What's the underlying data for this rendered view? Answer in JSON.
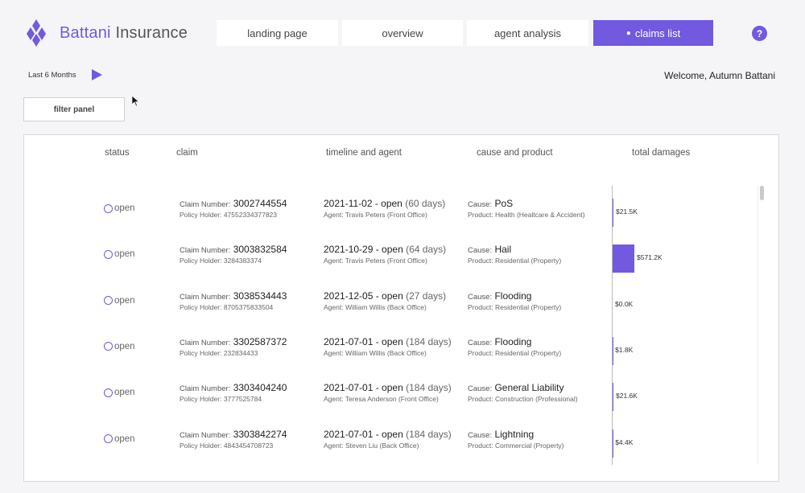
{
  "header": {
    "brand_primary": "Battani",
    "brand_secondary": "Insurance",
    "nav_tabs": [
      {
        "label": "landing page",
        "active": false
      },
      {
        "label": "overview",
        "active": false
      },
      {
        "label": "agent analysis",
        "active": false
      },
      {
        "label": "claims list",
        "active": true
      }
    ],
    "active_dot": "●",
    "help_label": "?"
  },
  "toolbar": {
    "period_label": "Last 6 Months",
    "welcome_text": "Welcome, Autumn Battani",
    "filter_button_label": "filter panel"
  },
  "table": {
    "columns": [
      "status",
      "claim",
      "timeline and agent",
      "cause and product",
      "total damages"
    ],
    "claim_prefix": "Claim Number:",
    "holder_prefix": "Policy Holder:",
    "cause_prefix": "Cause:",
    "product_prefix": "Product:",
    "agent_prefix": "Agent:",
    "rows": [
      {
        "status": "open",
        "claim_number": "3002744554",
        "policy_holder": "47552334377823",
        "date_status": "2021-11-02 - open",
        "days": "(60 days)",
        "agent": "Travis Peters (Front Office)",
        "cause": "PoS",
        "product": "Health (Healtcare & Accident)",
        "damages": 21.5,
        "damages_label": "$21.5K"
      },
      {
        "status": "open",
        "claim_number": "3003832584",
        "policy_holder": "3284383374",
        "date_status": "2021-10-29 - open",
        "days": "(64 days)",
        "agent": "Travis Peters (Front Office)",
        "cause": "Hail",
        "product": "Residential (Property)",
        "damages": 571.2,
        "damages_label": "$571.2K"
      },
      {
        "status": "open",
        "claim_number": "3038534443",
        "policy_holder": "8705375833504",
        "date_status": "2021-12-05 - open",
        "days": "(27 days)",
        "agent": "William Willis (Back Office)",
        "cause": "Flooding",
        "product": "Residential (Property)",
        "damages": 0.0,
        "damages_label": "$0.0K"
      },
      {
        "status": "open",
        "claim_number": "3302587372",
        "policy_holder": "232834433",
        "date_status": "2021-07-01 - open",
        "days": "(184 days)",
        "agent": "William Willis (Back Office)",
        "cause": "Flooding",
        "product": "Residential (Property)",
        "damages": 1.8,
        "damages_label": "$1.8K"
      },
      {
        "status": "open",
        "claim_number": "3303404240",
        "policy_holder": "3777525784",
        "date_status": "2021-07-01 - open",
        "days": "(184 days)",
        "agent": "Teresa Anderson (Front Office)",
        "cause": "General Liability",
        "product": "Construction (Professional)",
        "damages": 21.6,
        "damages_label": "$21.6K"
      },
      {
        "status": "open",
        "claim_number": "3303842274",
        "policy_holder": "4843454708723",
        "date_status": "2021-07-01 - open",
        "days": "(184 days)",
        "agent": "Steven Liu (Back Office)",
        "cause": "Lightning",
        "product": "Commercial (Property)",
        "damages": 4.4,
        "damages_label": "$4.4K"
      }
    ]
  },
  "colors": {
    "accent": "#7259e0",
    "background": "#f5f5f8"
  }
}
